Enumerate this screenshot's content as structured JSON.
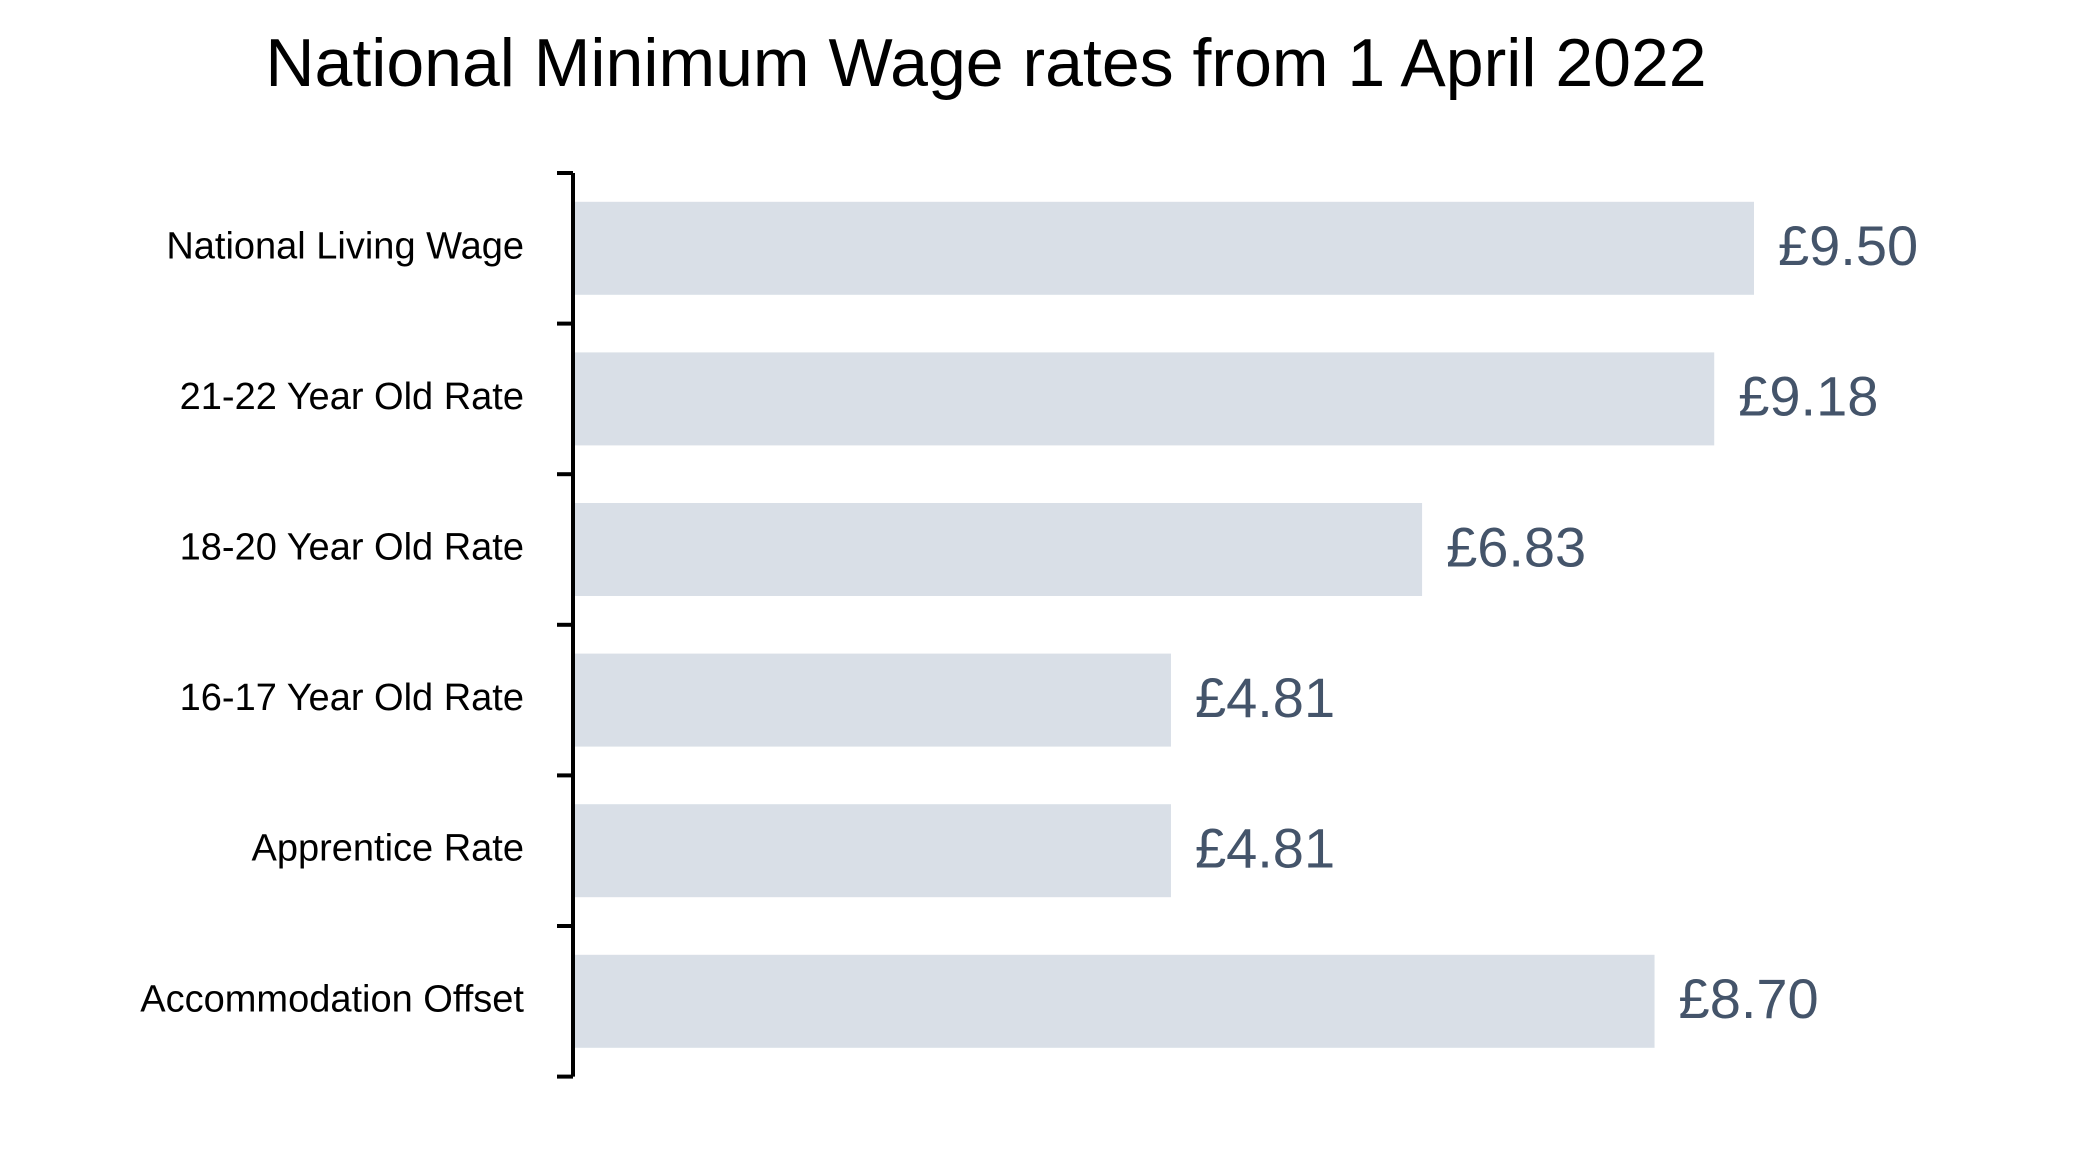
{
  "chart_data": {
    "type": "hbar",
    "title": "National Minimum Wage rates from 1 April 2022",
    "categories": [
      "National Living Wage",
      "21-22 Year Old Rate",
      "18-20 Year Old Rate",
      "16-17 Year Old Rate",
      "Apprentice Rate",
      "Accommodation Offset"
    ],
    "values": [
      9.5,
      9.18,
      6.83,
      4.81,
      4.81,
      8.7
    ],
    "value_labels": [
      "£9.50",
      "£9.18",
      "£6.83",
      "£4.81",
      "£4.81",
      "£8.70"
    ],
    "color": "#d9dfe7",
    "label_color": "#44546a"
  }
}
